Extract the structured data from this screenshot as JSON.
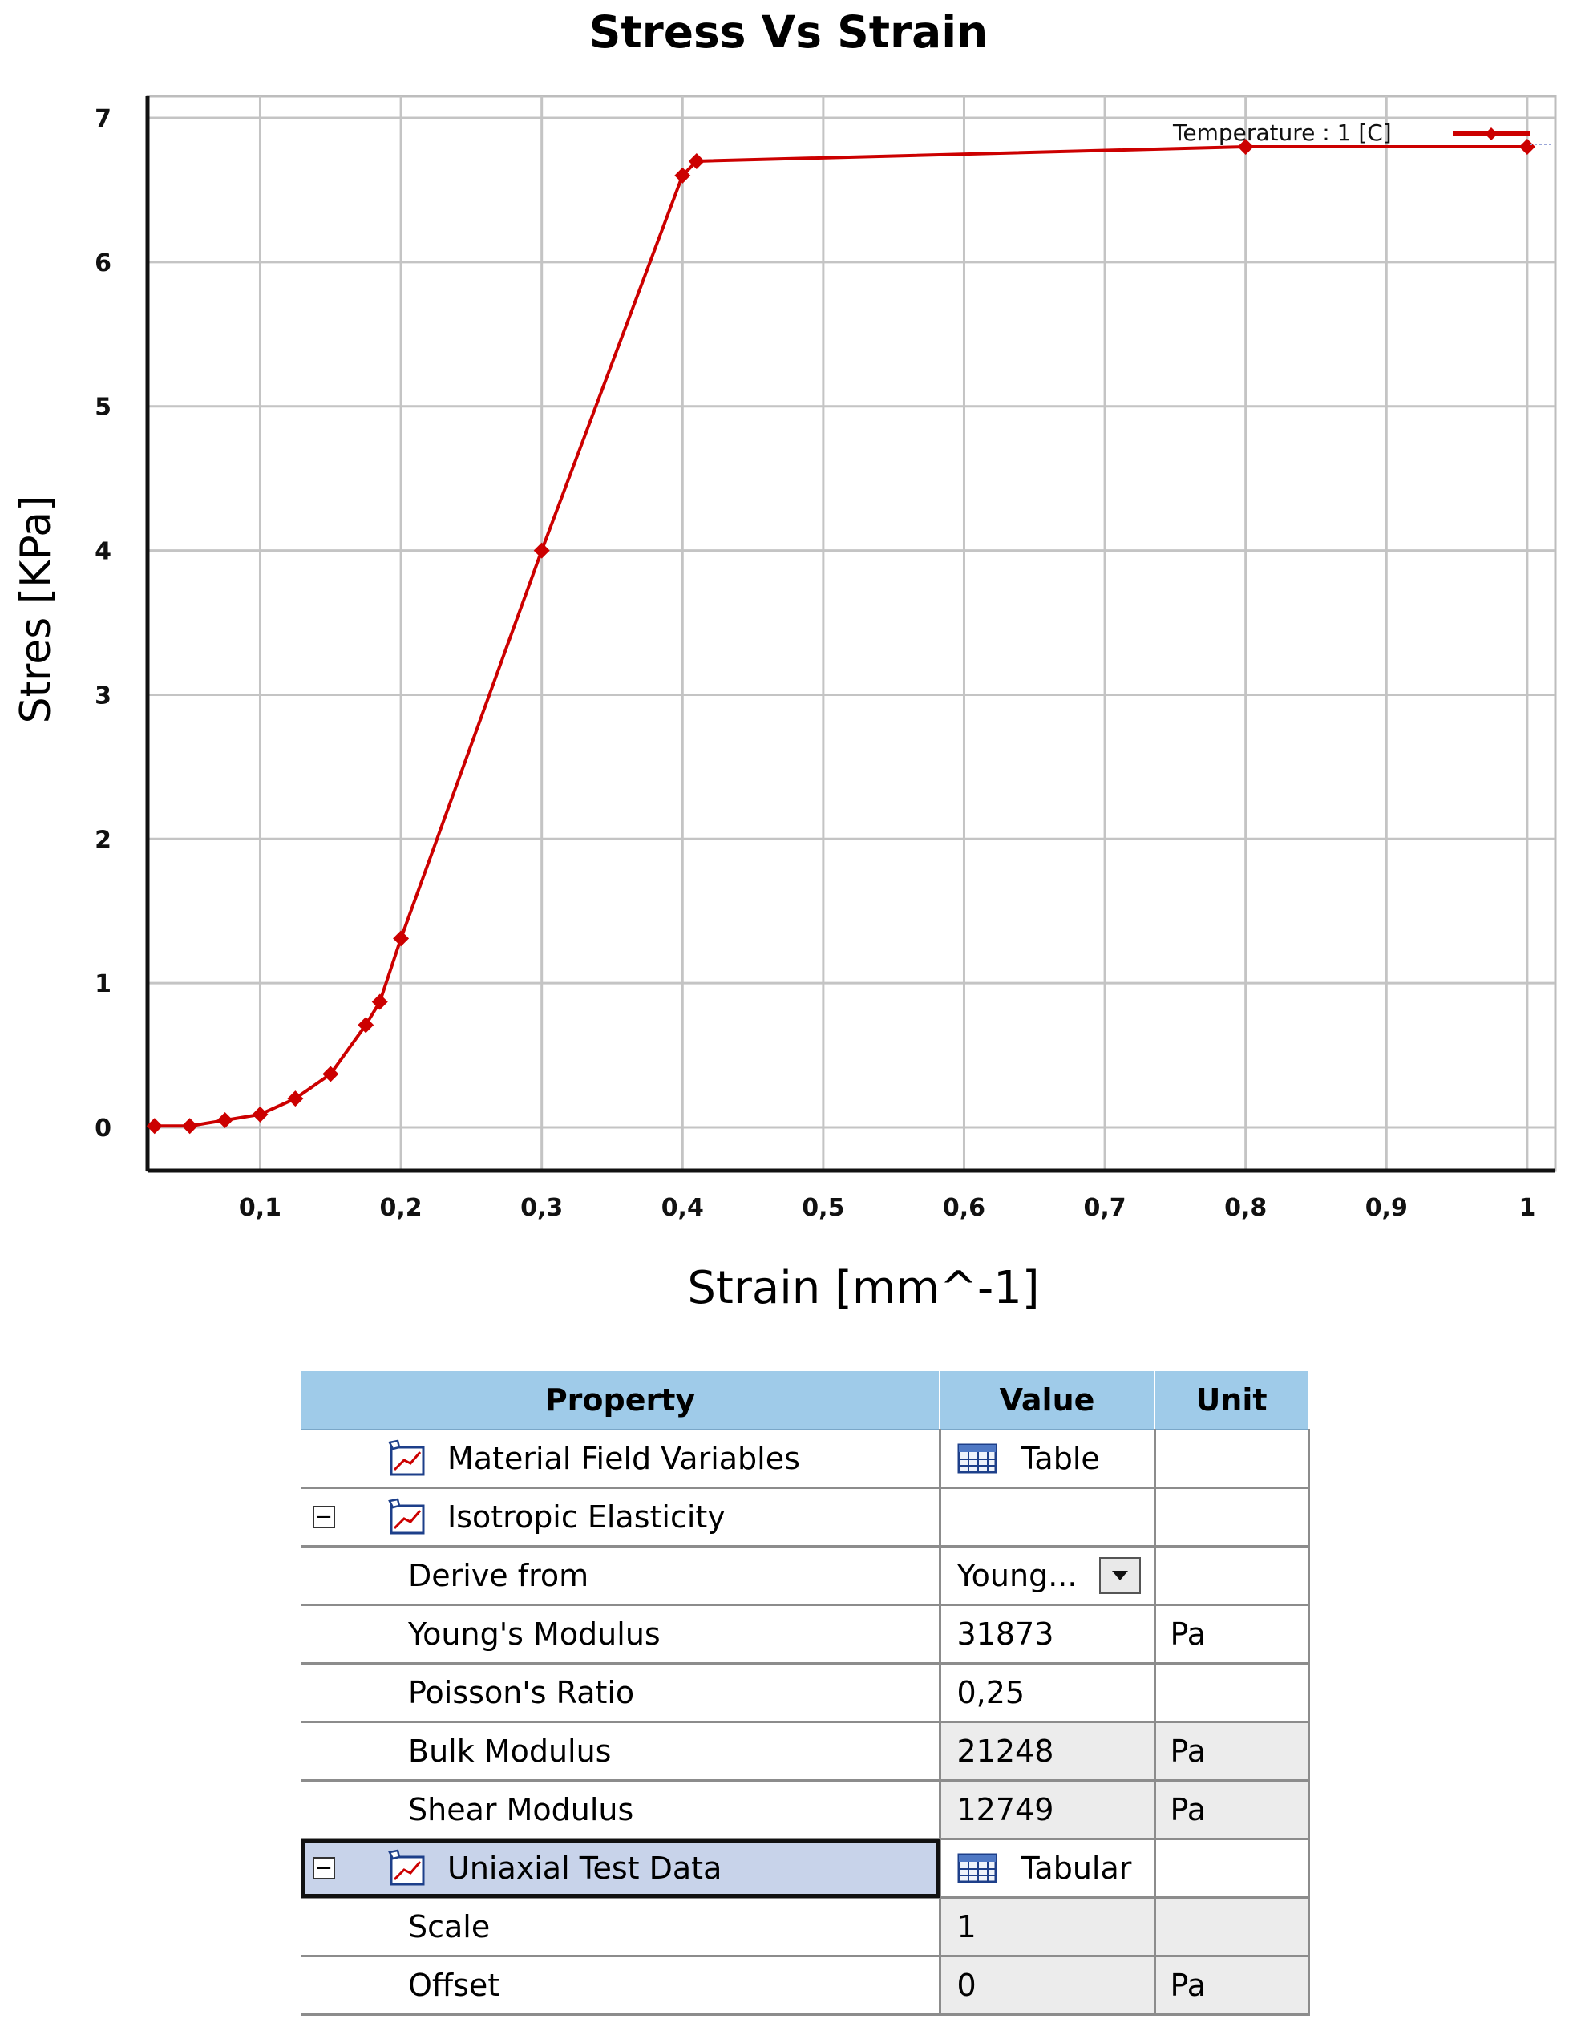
{
  "chart_data": {
    "type": "line",
    "title": "Stress Vs Strain",
    "xlabel": "Strain [mm^-1]",
    "ylabel": "Stres [KPa]",
    "xlim": [
      0.02,
      1.02
    ],
    "ylim": [
      -0.3,
      7.15
    ],
    "x_ticks": [
      "0,1",
      "0,2",
      "0,3",
      "0,4",
      "0,5",
      "0,6",
      "0,7",
      "0,8",
      "0,9",
      "1"
    ],
    "y_ticks": [
      "0",
      "1",
      "2",
      "3",
      "4",
      "5",
      "6",
      "7"
    ],
    "grid": true,
    "legend_position": "top-right",
    "series": [
      {
        "name": "Temperature : 1 [C]",
        "color": "#cc0000",
        "x": [
          0.025,
          0.05,
          0.075,
          0.1,
          0.125,
          0.15,
          0.175,
          0.185,
          0.2,
          0.3,
          0.4,
          0.41,
          0.8,
          1.0
        ],
        "y": [
          0.01,
          0.01,
          0.05,
          0.09,
          0.2,
          0.37,
          0.71,
          0.87,
          1.31,
          4.0,
          6.6,
          6.7,
          6.8,
          6.8
        ]
      }
    ]
  },
  "table": {
    "headers": {
      "property": "Property",
      "value": "Value",
      "unit": "Unit"
    },
    "rows": [
      {
        "property": "Material Field Variables",
        "value": "Table",
        "unit": "",
        "icon": "pen-chart-icon",
        "value_icon": "table-icon"
      },
      {
        "property": "Isotropic Elasticity",
        "value": "",
        "unit": "",
        "icon": "pen-chart-icon",
        "expander": "⊟"
      },
      {
        "property": "Derive from",
        "value": "Young...",
        "unit": "",
        "dropdown": true
      },
      {
        "property": "Young's Modulus",
        "value": "31873",
        "unit": "Pa"
      },
      {
        "property": "Poisson's Ratio",
        "value": "0,25",
        "unit": ""
      },
      {
        "property": "Bulk Modulus",
        "value": "21248",
        "unit": "Pa"
      },
      {
        "property": "Shear Modulus",
        "value": "12749",
        "unit": "Pa"
      },
      {
        "property": "Uniaxial Test Data",
        "value": "Tabular",
        "unit": "",
        "icon": "pen-chart-icon",
        "expander": "⊟",
        "value_icon": "table-icon",
        "selected": true
      },
      {
        "property": "Scale",
        "value": "1",
        "unit": ""
      },
      {
        "property": "Offset",
        "value": "0",
        "unit": "Pa"
      }
    ]
  }
}
